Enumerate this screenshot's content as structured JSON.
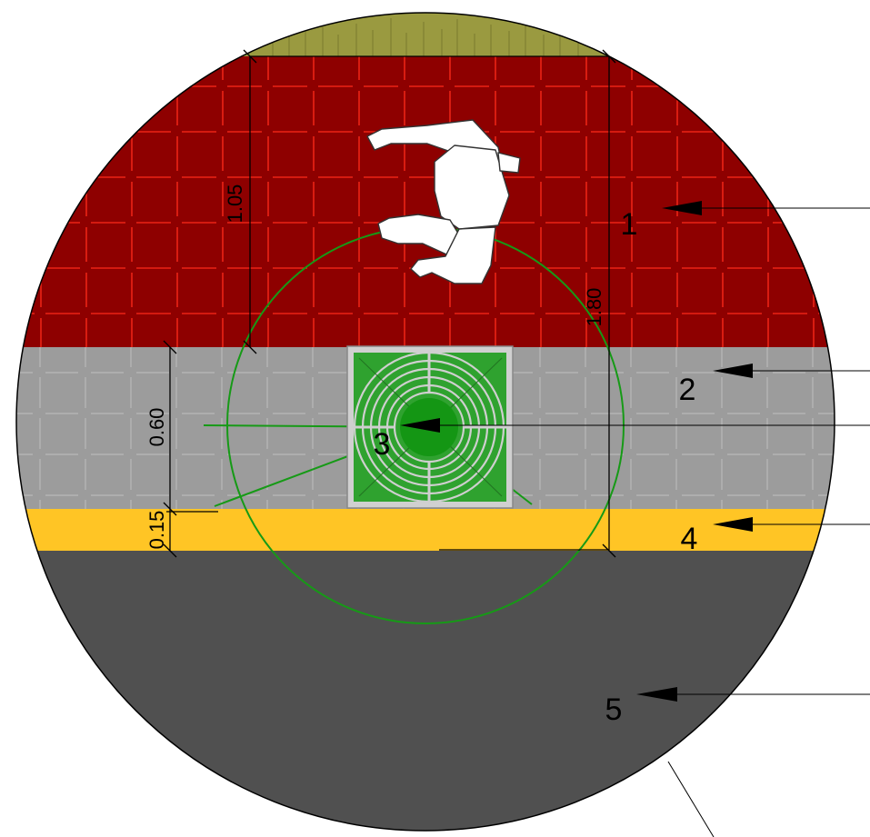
{
  "dimensions": {
    "d1": "1.05",
    "d2": "1.80",
    "d3": "0.60",
    "d4": "0.15"
  },
  "callouts": [
    "1",
    "2",
    "3",
    "4",
    "5"
  ],
  "colors": {
    "bike_lane": "#8e0000",
    "bike_lane_grid": "#ff2a1a",
    "sidewalk": "#9c9c9c",
    "sidewalk_grid": "#b8b8b8",
    "tree_grate": "#2fa22f",
    "tree_canopy": "#149614",
    "curb_stripe": "#ffc525",
    "roadway": "#505050",
    "green_strip": "#9a9a40",
    "accent_green": "#169a16"
  },
  "icons": [
    "cyclist-icon",
    "tree-grate-icon"
  ]
}
